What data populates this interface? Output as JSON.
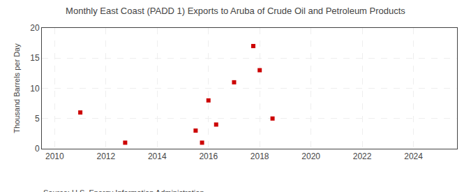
{
  "chart_data": {
    "type": "scatter",
    "title": "Monthly East Coast (PADD 1) Exports to Aruba of Crude Oil and Petroleum Products",
    "ylabel": "Thousand Barrels per Day",
    "annotations": [
      "Source: U.S. Energy Information Administration"
    ],
    "x": [
      2011.0,
      2012.75,
      2015.5,
      2015.75,
      2016.0,
      2016.3,
      2017.0,
      2017.75,
      2018.0,
      2018.5
    ],
    "values": [
      6.0,
      1.0,
      3.0,
      1.0,
      8.0,
      4.0,
      11.0,
      17.0,
      13.0,
      5.0
    ],
    "color": "#cc0000",
    "marker": "square",
    "xlim": [
      2009.5,
      2025.7
    ],
    "xticks": [
      2010,
      2012,
      2014,
      2016,
      2018,
      2020,
      2022,
      2024
    ],
    "ylim": [
      0,
      20
    ],
    "yticks": [
      0,
      5,
      10,
      15,
      20
    ],
    "grid": true
  }
}
